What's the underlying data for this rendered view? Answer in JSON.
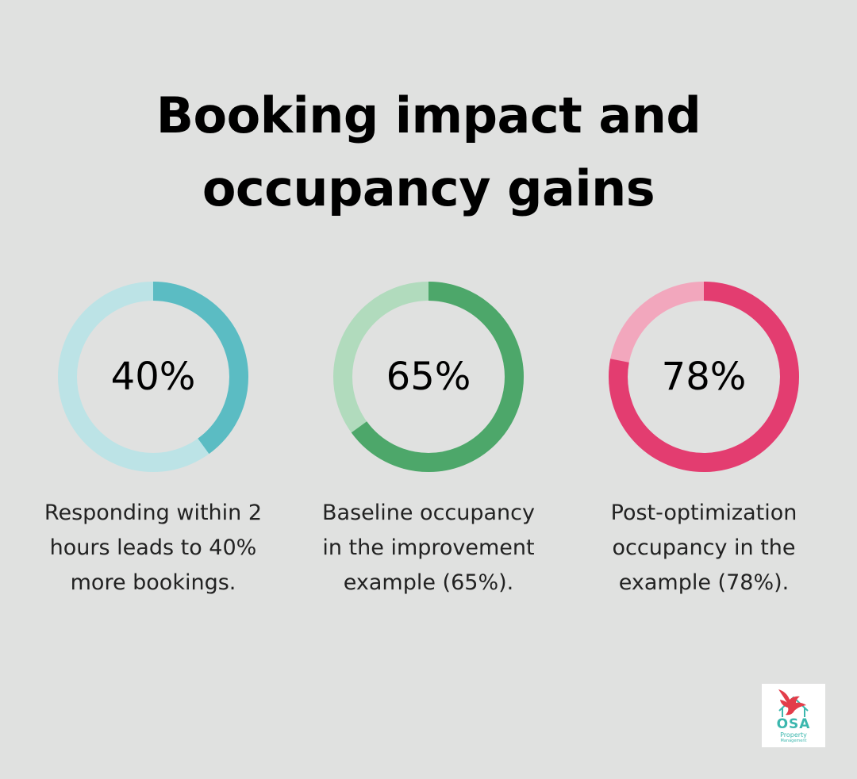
{
  "title_line1": "Booking impact and",
  "title_line2": "occupancy gains",
  "chart_data": {
    "type": "donut",
    "items": [
      {
        "value": 40,
        "value_label": "40%",
        "description": [
          "Responding within 2",
          "hours leads to 40%",
          "more bookings."
        ],
        "color": "#5bbcc3",
        "track_color": "#bce3e6"
      },
      {
        "value": 65,
        "value_label": "65%",
        "description": [
          "Baseline occupancy",
          "in the improvement",
          "example (65%)."
        ],
        "color": "#4da76a",
        "track_color": "#b1dbbd"
      },
      {
        "value": 78,
        "value_label": "78%",
        "description": [
          "Post-optimization",
          "occupancy in the",
          "example (78%)."
        ],
        "color": "#e33d70",
        "track_color": "#f2a7bd"
      }
    ]
  },
  "logo": {
    "brand": "OSA",
    "line1": "Property",
    "line2": "Management"
  }
}
